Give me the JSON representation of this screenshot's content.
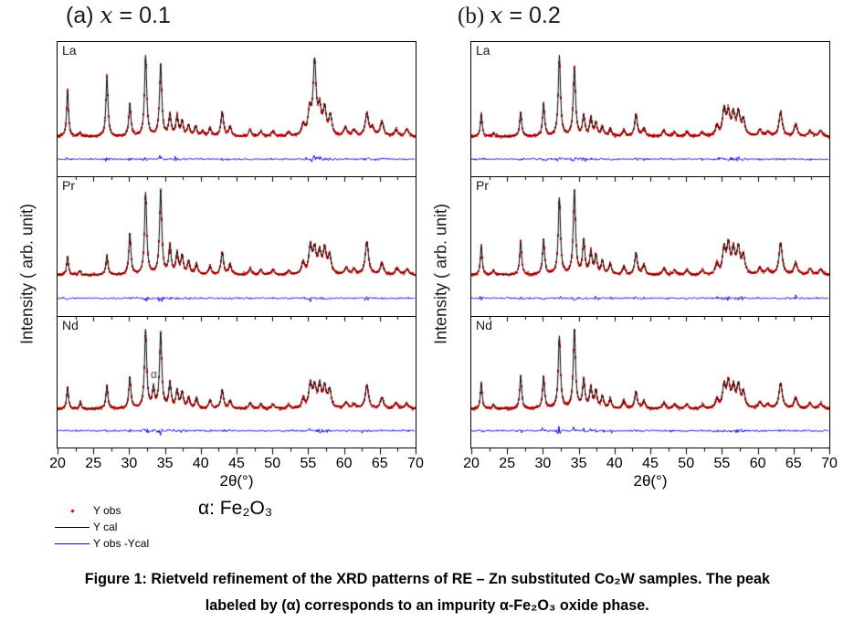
{
  "figure": {
    "panels": [
      {
        "title_prefix": "(a) ",
        "title_var": "x",
        "title_value": " = 0.1"
      },
      {
        "title_prefix": "(b) ",
        "title_var": "x",
        "title_value": " = 0.2"
      }
    ],
    "ylabel": "Intensity ( arb. unit)",
    "xlabel": "2θ(°)",
    "legend": [
      {
        "label": "Y obs",
        "marker": "red-point",
        "color": "#e60000"
      },
      {
        "label": "Y cal",
        "marker": "black-line",
        "color": "#000000"
      },
      {
        "label": "Y obs -Ycal",
        "marker": "blue-line",
        "color": "#0000dd"
      }
    ],
    "impurity_note": "α: Fe₂O₃"
  },
  "caption": {
    "line1": "Figure 1: Rietveld refinement of the XRD patterns of RE – Zn substituted Co₂W samples. The peak",
    "line2": "labeled by (α) corresponds to an impurity α-Fe₂O₃ oxide phase."
  },
  "chart_data": {
    "type": "line",
    "title": "Rietveld refinement of XRD patterns of RE–Zn substituted Co2W samples",
    "xlabel": "2θ(°)",
    "ylabel": "Intensity ( arb. unit)",
    "x_range": [
      20,
      70
    ],
    "x_ticks": [
      20,
      25,
      30,
      35,
      40,
      45,
      50,
      55,
      60,
      65,
      70
    ],
    "grid": false,
    "series_per_subplot": [
      "Y obs (red points)",
      "Y cal (black line)",
      "Y obs - Y cal (blue line)"
    ],
    "peak_format": "[two_theta_degrees, relative_intensity_0_100]",
    "panels": [
      {
        "id": "a",
        "composition": "x = 0.1",
        "subplots": [
          {
            "sample": "La",
            "peaks": [
              [
                21.4,
                58
              ],
              [
                23.1,
                5
              ],
              [
                26.9,
                75
              ],
              [
                30.1,
                40
              ],
              [
                32.3,
                100
              ],
              [
                34.4,
                88
              ],
              [
                35.7,
                26
              ],
              [
                36.7,
                24
              ],
              [
                37.4,
                18
              ],
              [
                38.3,
                13
              ],
              [
                39.3,
                12
              ],
              [
                40.3,
                6
              ],
              [
                41.3,
                10
              ],
              [
                43.0,
                30
              ],
              [
                44.1,
                12
              ],
              [
                46.9,
                8
              ],
              [
                48.4,
                6
              ],
              [
                50.1,
                7
              ],
              [
                52.3,
                5
              ],
              [
                54.3,
                13
              ],
              [
                55.2,
                30
              ],
              [
                55.9,
                90
              ],
              [
                56.6,
                30
              ],
              [
                57.3,
                32
              ],
              [
                58.1,
                24
              ],
              [
                60.2,
                10
              ],
              [
                61.4,
                8
              ],
              [
                63.2,
                28
              ],
              [
                64.0,
                10
              ],
              [
                65.3,
                18
              ],
              [
                67.3,
                8
              ],
              [
                68.8,
                9
              ]
            ]
          },
          {
            "sample": "Pr",
            "peaks": [
              [
                21.4,
                22
              ],
              [
                23.1,
                5
              ],
              [
                26.9,
                23
              ],
              [
                30.1,
                49
              ],
              [
                32.3,
                98
              ],
              [
                34.4,
                100
              ],
              [
                35.7,
                34
              ],
              [
                36.7,
                25
              ],
              [
                37.4,
                22
              ],
              [
                38.3,
                15
              ],
              [
                39.4,
                13
              ],
              [
                41.3,
                10
              ],
              [
                43.0,
                27
              ],
              [
                44.1,
                12
              ],
              [
                46.9,
                8
              ],
              [
                48.4,
                6
              ],
              [
                50.1,
                7
              ],
              [
                52.3,
                5
              ],
              [
                54.3,
                14
              ],
              [
                55.3,
                33
              ],
              [
                55.9,
                28
              ],
              [
                56.6,
                25
              ],
              [
                57.3,
                29
              ],
              [
                58.0,
                22
              ],
              [
                60.3,
                8
              ],
              [
                61.4,
                6
              ],
              [
                63.2,
                40
              ],
              [
                65.3,
                14
              ],
              [
                67.4,
                8
              ],
              [
                68.8,
                7
              ]
            ]
          },
          {
            "sample": "Nd",
            "annotation": {
              "text": "α",
              "x": 33.4
            },
            "peaks": [
              [
                21.4,
                28
              ],
              [
                23.2,
                9
              ],
              [
                26.9,
                30
              ],
              [
                30.1,
                40
              ],
              [
                32.3,
                100
              ],
              [
                33.4,
                24
              ],
              [
                34.4,
                95
              ],
              [
                35.7,
                32
              ],
              [
                36.7,
                22
              ],
              [
                37.4,
                20
              ],
              [
                38.3,
                13
              ],
              [
                39.4,
                13
              ],
              [
                41.3,
                11
              ],
              [
                43.0,
                24
              ],
              [
                44.1,
                10
              ],
              [
                46.9,
                8
              ],
              [
                48.4,
                6
              ],
              [
                50.1,
                6
              ],
              [
                52.3,
                5
              ],
              [
                54.3,
                12
              ],
              [
                55.3,
                30
              ],
              [
                55.9,
                26
              ],
              [
                56.6,
                28
              ],
              [
                57.3,
                26
              ],
              [
                58.0,
                23
              ],
              [
                60.3,
                8
              ],
              [
                61.4,
                6
              ],
              [
                63.2,
                30
              ],
              [
                65.3,
                14
              ],
              [
                67.3,
                7
              ],
              [
                68.8,
                7
              ]
            ]
          }
        ]
      },
      {
        "id": "b",
        "composition": "x = 0.2",
        "subplots": [
          {
            "sample": "La",
            "peaks": [
              [
                21.4,
                28
              ],
              [
                23.1,
                5
              ],
              [
                26.9,
                30
              ],
              [
                30.1,
                40
              ],
              [
                32.3,
                100
              ],
              [
                34.4,
                85
              ],
              [
                35.7,
                25
              ],
              [
                36.7,
                22
              ],
              [
                37.4,
                16
              ],
              [
                38.3,
                11
              ],
              [
                39.4,
                10
              ],
              [
                41.3,
                8
              ],
              [
                43.0,
                28
              ],
              [
                44.1,
                10
              ],
              [
                46.9,
                8
              ],
              [
                48.4,
                5
              ],
              [
                50.1,
                6
              ],
              [
                52.3,
                5
              ],
              [
                54.3,
                12
              ],
              [
                55.3,
                32
              ],
              [
                55.9,
                28
              ],
              [
                56.6,
                26
              ],
              [
                57.3,
                28
              ],
              [
                58.0,
                20
              ],
              [
                60.3,
                8
              ],
              [
                61.4,
                6
              ],
              [
                63.2,
                30
              ],
              [
                65.3,
                14
              ],
              [
                67.3,
                7
              ],
              [
                68.8,
                7
              ]
            ]
          },
          {
            "sample": "Pr",
            "peaks": [
              [
                21.4,
                35
              ],
              [
                23.1,
                6
              ],
              [
                26.9,
                40
              ],
              [
                30.1,
                42
              ],
              [
                32.3,
                92
              ],
              [
                34.4,
                100
              ],
              [
                35.7,
                40
              ],
              [
                36.7,
                26
              ],
              [
                37.4,
                22
              ],
              [
                38.3,
                16
              ],
              [
                39.4,
                13
              ],
              [
                41.3,
                10
              ],
              [
                43.0,
                26
              ],
              [
                44.1,
                12
              ],
              [
                46.9,
                8
              ],
              [
                48.4,
                6
              ],
              [
                50.1,
                6
              ],
              [
                52.3,
                5
              ],
              [
                54.3,
                12
              ],
              [
                55.3,
                30
              ],
              [
                55.9,
                33
              ],
              [
                56.6,
                28
              ],
              [
                57.3,
                30
              ],
              [
                58.0,
                22
              ],
              [
                60.3,
                8
              ],
              [
                61.4,
                6
              ],
              [
                63.2,
                38
              ],
              [
                65.3,
                14
              ],
              [
                67.3,
                7
              ],
              [
                68.8,
                7
              ]
            ]
          },
          {
            "sample": "Nd",
            "peaks": [
              [
                21.4,
                33
              ],
              [
                23.1,
                6
              ],
              [
                26.9,
                42
              ],
              [
                30.1,
                40
              ],
              [
                32.3,
                92
              ],
              [
                34.4,
                100
              ],
              [
                35.7,
                36
              ],
              [
                36.7,
                26
              ],
              [
                37.4,
                22
              ],
              [
                38.3,
                15
              ],
              [
                39.4,
                12
              ],
              [
                41.3,
                10
              ],
              [
                43.0,
                22
              ],
              [
                44.1,
                10
              ],
              [
                46.9,
                8
              ],
              [
                48.4,
                6
              ],
              [
                50.1,
                6
              ],
              [
                52.3,
                5
              ],
              [
                54.3,
                12
              ],
              [
                55.3,
                28
              ],
              [
                55.9,
                31
              ],
              [
                56.6,
                26
              ],
              [
                57.3,
                28
              ],
              [
                58.0,
                20
              ],
              [
                60.3,
                8
              ],
              [
                61.4,
                6
              ],
              [
                63.2,
                33
              ],
              [
                65.3,
                14
              ],
              [
                67.3,
                7
              ],
              [
                68.8,
                7
              ]
            ]
          }
        ]
      }
    ]
  }
}
